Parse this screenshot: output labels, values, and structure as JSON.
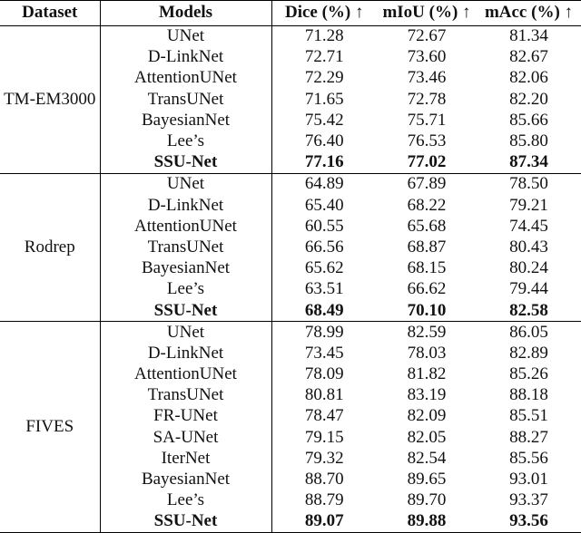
{
  "page": {
    "background_color": "#ffffff",
    "text_color": "#111111",
    "rule_color": "#000000"
  },
  "table": {
    "headers": [
      {
        "key": "dataset",
        "label": "Dataset"
      },
      {
        "key": "models",
        "label": "Models"
      },
      {
        "key": "dice",
        "label": "Dice (%) ↑"
      },
      {
        "key": "miou",
        "label": "mIoU (%) ↑"
      },
      {
        "key": "macc",
        "label": "mAcc (%) ↑"
      }
    ],
    "sections": [
      {
        "dataset": "TM-EM3000",
        "rows": [
          {
            "model": "UNet",
            "dice": "71.28",
            "miou": "72.67",
            "macc": "81.34",
            "bold": false
          },
          {
            "model": "D-LinkNet",
            "dice": "72.71",
            "miou": "73.60",
            "macc": "82.67",
            "bold": false
          },
          {
            "model": "AttentionUNet",
            "dice": "72.29",
            "miou": "73.46",
            "macc": "82.06",
            "bold": false
          },
          {
            "model": "TransUNet",
            "dice": "71.65",
            "miou": "72.78",
            "macc": "82.20",
            "bold": false
          },
          {
            "model": "BayesianNet",
            "dice": "75.42",
            "miou": "75.71",
            "macc": "85.66",
            "bold": false
          },
          {
            "model": "Lee’s",
            "dice": "76.40",
            "miou": "76.53",
            "macc": "85.80",
            "bold": false
          },
          {
            "model": "SSU-Net",
            "dice": "77.16",
            "miou": "77.02",
            "macc": "87.34",
            "bold": true
          }
        ]
      },
      {
        "dataset": "Rodrep",
        "rows": [
          {
            "model": "UNet",
            "dice": "64.89",
            "miou": "67.89",
            "macc": "78.50",
            "bold": false
          },
          {
            "model": "D-LinkNet",
            "dice": "65.40",
            "miou": "68.22",
            "macc": "79.21",
            "bold": false
          },
          {
            "model": "AttentionUNet",
            "dice": "60.55",
            "miou": "65.68",
            "macc": "74.45",
            "bold": false
          },
          {
            "model": "TransUNet",
            "dice": "66.56",
            "miou": "68.87",
            "macc": "80.43",
            "bold": false
          },
          {
            "model": "BayesianNet",
            "dice": "65.62",
            "miou": "68.15",
            "macc": "80.24",
            "bold": false
          },
          {
            "model": "Lee’s",
            "dice": "63.51",
            "miou": "66.62",
            "macc": "79.44",
            "bold": false
          },
          {
            "model": "SSU-Net",
            "dice": "68.49",
            "miou": "70.10",
            "macc": "82.58",
            "bold": true
          }
        ]
      },
      {
        "dataset": "FIVES",
        "rows": [
          {
            "model": "UNet",
            "dice": "78.99",
            "miou": "82.59",
            "macc": "86.05",
            "bold": false
          },
          {
            "model": "D-LinkNet",
            "dice": "73.45",
            "miou": "78.03",
            "macc": "82.89",
            "bold": false
          },
          {
            "model": "AttentionUNet",
            "dice": "78.09",
            "miou": "81.82",
            "macc": "85.26",
            "bold": false
          },
          {
            "model": "TransUNet",
            "dice": "80.81",
            "miou": "83.19",
            "macc": "88.18",
            "bold": false
          },
          {
            "model": "FR-UNet",
            "dice": "78.47",
            "miou": "82.09",
            "macc": "85.51",
            "bold": false
          },
          {
            "model": "SA-UNet",
            "dice": "79.15",
            "miou": "82.05",
            "macc": "88.27",
            "bold": false
          },
          {
            "model": "IterNet",
            "dice": "79.32",
            "miou": "82.54",
            "macc": "85.56",
            "bold": false
          },
          {
            "model": "BayesianNet",
            "dice": "88.70",
            "miou": "89.65",
            "macc": "93.01",
            "bold": false
          },
          {
            "model": "Lee’s",
            "dice": "88.79",
            "miou": "89.70",
            "macc": "93.37",
            "bold": false
          },
          {
            "model": "SSU-Net",
            "dice": "89.07",
            "miou": "89.88",
            "macc": "93.56",
            "bold": true
          }
        ]
      }
    ]
  }
}
